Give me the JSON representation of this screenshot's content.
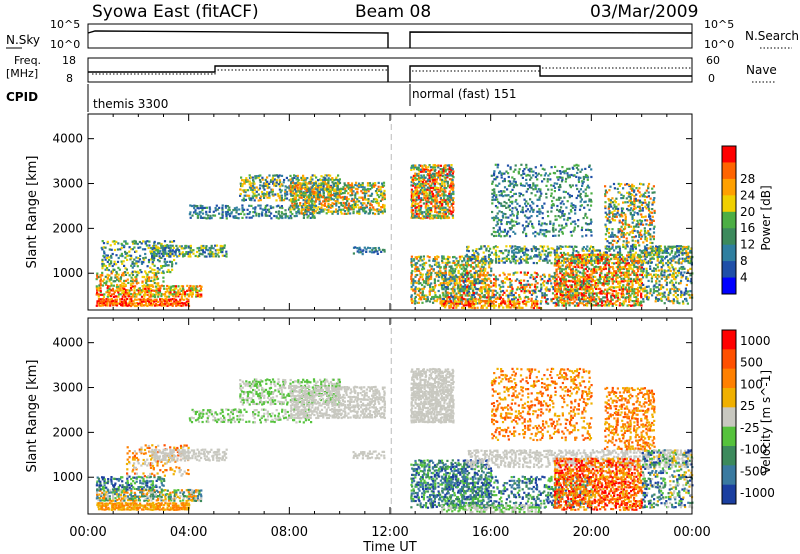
{
  "header": {
    "title": "Syowa East (fitACF)",
    "beam": "Beam 08",
    "date": "03/Mar/2009"
  },
  "noise_panel": {
    "left_label": "N.Sky",
    "right_label": "N.Search",
    "left_ticks": [
      "10^5",
      "10^0"
    ],
    "right_ticks": [
      "10^5",
      "10^0"
    ]
  },
  "freq_panel": {
    "left_label_1": "Freq.",
    "left_label_2": "[MHz]",
    "right_label": "Nave",
    "left_ticks": [
      "18",
      "8"
    ],
    "right_ticks": [
      "60",
      "0"
    ],
    "cpid_label": "CPID",
    "cpid_1": "themis 3300",
    "cpid_2": "normal (fast) 151"
  },
  "x_axis": {
    "label": "Time UT",
    "ticks": [
      "00:00",
      "04:00",
      "08:00",
      "12:00",
      "16:00",
      "20:00",
      "00:00"
    ]
  },
  "colors": {
    "power_scale": [
      "#0000ff",
      "#1f4fa8",
      "#2f7fa0",
      "#3c8a5c",
      "#4cae44",
      "#f0d000",
      "#ffa000",
      "#ff6400",
      "#ff0000"
    ],
    "velocity_scale": [
      "#1b3fa0",
      "#3a7aa0",
      "#3c8a5c",
      "#55c23c",
      "#c8c8c0",
      "#f0b000",
      "#ff8000",
      "#ff5000",
      "#ff0000"
    ]
  },
  "chart_data": [
    {
      "type": "heatmap",
      "title": "",
      "xlabel": "Time UT",
      "ylabel": "Slant Range [km]",
      "ylim": [
        180,
        4550
      ],
      "yticks": [
        "1000",
        "2000",
        "3000",
        "4000"
      ],
      "colorbar": {
        "label": "Power [dB]",
        "ticks": [
          "4",
          "8",
          "12",
          "16",
          "20",
          "24",
          "28"
        ]
      }
    },
    {
      "type": "heatmap",
      "title": "",
      "xlabel": "Time UT",
      "ylabel": "Slant Range [km]",
      "ylim": [
        180,
        4550
      ],
      "yticks": [
        "1000",
        "2000",
        "3000",
        "4000"
      ],
      "colorbar": {
        "label": "Velocity [m s^-1]",
        "ticks": [
          "1000",
          "500",
          "100",
          "25",
          "-25",
          "-100",
          "-500",
          "-1000"
        ]
      }
    }
  ]
}
